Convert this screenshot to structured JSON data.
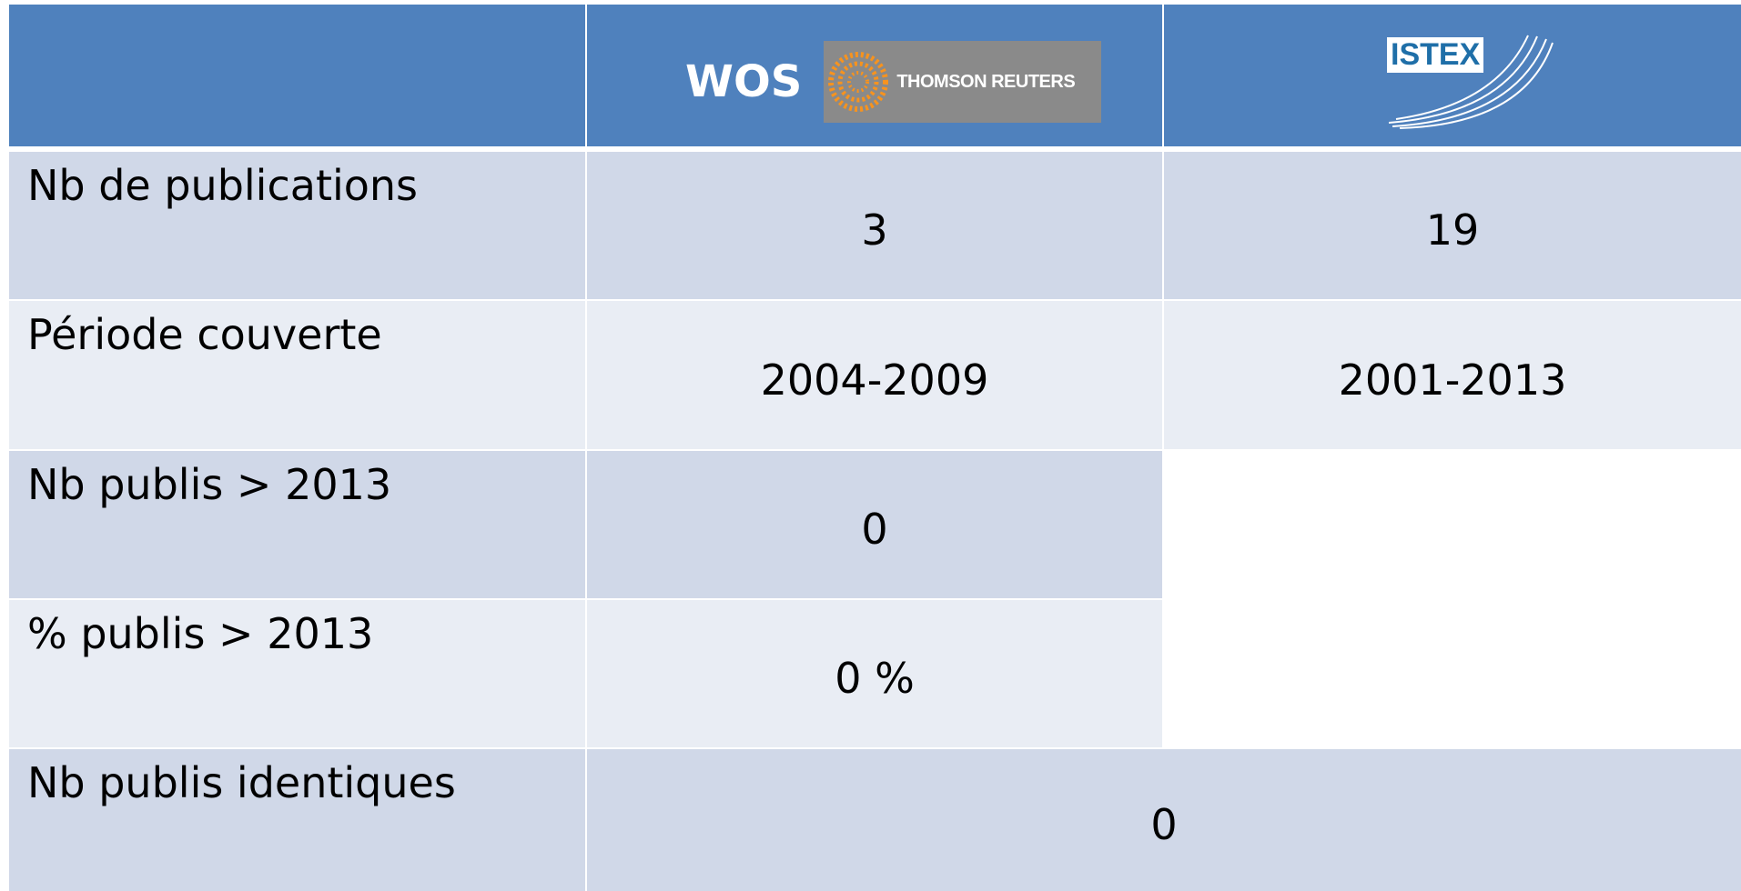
{
  "header": {
    "wos": "WOS",
    "thomson": "THOMSON REUTERS",
    "istex": "ISTEX"
  },
  "table": {
    "rows": [
      [
        "Nb de publications",
        "3",
        "19"
      ],
      [
        "Période couverte",
        "2004-2009",
        "2001-2013"
      ],
      [
        "Nb publis > 2013",
        "0"
      ],
      [
        "% publis > 2013",
        "0 %"
      ],
      [
        "Nb publis identiques",
        "0"
      ]
    ]
  }
}
